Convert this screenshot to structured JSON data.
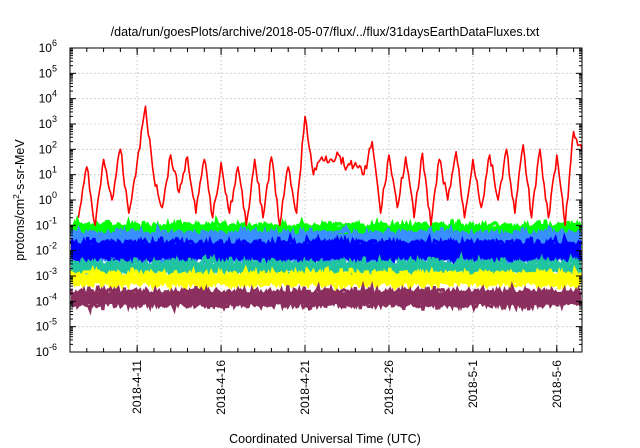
{
  "chart_data": {
    "type": "line",
    "title": "/data/run/goesPlots/archive/2018-05-07/flux/../flux/31daysEarthDataFluxes.txt",
    "xlabel": "Coordinated Universal Time (UTC)",
    "ylabel": "protons/cm2-s-sr-MeV",
    "ylabel_parts": {
      "base": "protons/cm",
      "sup": "2",
      "rest": "-s-sr-MeV"
    },
    "yscale": "log",
    "ylim_exponent": [
      -6,
      6
    ],
    "y_tick_exponents": [
      -6,
      -5,
      -4,
      -3,
      -2,
      -1,
      0,
      1,
      2,
      3,
      4,
      5,
      6
    ],
    "y_tick_base": "10",
    "x_range_days": [
      "2018-04-07",
      "2018-05-07T12:00"
    ],
    "x_ticks": [
      {
        "date": "2018-04-11",
        "label": "2018-4-11"
      },
      {
        "date": "2018-04-16",
        "label": "2018-4-16"
      },
      {
        "date": "2018-04-21",
        "label": "2018-4-21"
      },
      {
        "date": "2018-04-26",
        "label": "2018-4-26"
      },
      {
        "date": "2018-05-01",
        "label": "2018-5-1"
      },
      {
        "date": "2018-05-06",
        "label": "2018-5-6"
      }
    ],
    "grid": true,
    "legend": "none",
    "series": [
      {
        "color": "#ff0000",
        "kind": "line",
        "x": [
          "2018-04-07T12:00",
          "2018-04-08",
          "2018-04-08T12:00",
          "2018-04-09",
          "2018-04-09T12:00",
          "2018-04-10",
          "2018-04-10T12:00",
          "2018-04-11",
          "2018-04-11T12:00",
          "2018-04-12",
          "2018-04-12T12:00",
          "2018-04-13",
          "2018-04-13T12:00",
          "2018-04-14",
          "2018-04-14T12:00",
          "2018-04-15",
          "2018-04-15T12:00",
          "2018-04-16",
          "2018-04-16T12:00",
          "2018-04-17",
          "2018-04-17T12:00",
          "2018-04-18",
          "2018-04-18T12:00",
          "2018-04-19",
          "2018-04-19T12:00",
          "2018-04-20",
          "2018-04-20T12:00",
          "2018-04-21",
          "2018-04-21T12:00",
          "2018-04-22",
          "2018-04-22T12:00",
          "2018-04-23",
          "2018-04-23T12:00",
          "2018-04-24",
          "2018-04-24T12:00",
          "2018-04-25",
          "2018-04-25T12:00",
          "2018-04-26",
          "2018-04-26T12:00",
          "2018-04-27",
          "2018-04-27T12:00",
          "2018-04-28",
          "2018-04-28T12:00",
          "2018-04-29",
          "2018-04-29T12:00",
          "2018-04-30",
          "2018-04-30T12:00",
          "2018-05-01",
          "2018-05-01T12:00",
          "2018-05-02",
          "2018-05-02T12:00",
          "2018-05-03",
          "2018-05-03T12:00",
          "2018-05-04",
          "2018-05-04T12:00",
          "2018-05-05",
          "2018-05-05T12:00",
          "2018-05-06",
          "2018-05-06T12:00",
          "2018-05-07",
          "2018-05-07T12:00"
        ],
        "y": [
          0.2,
          20,
          0.1,
          40,
          1,
          100,
          0.3,
          30,
          5000,
          8,
          0.5,
          60,
          2,
          50,
          0.3,
          40,
          0.2,
          30,
          0.3,
          20,
          0.1,
          40,
          0.2,
          50,
          0.1,
          20,
          0.3,
          2000,
          10,
          50,
          40,
          60,
          20,
          30,
          10,
          200,
          0.3,
          60,
          0.5,
          50,
          0.2,
          70,
          0.1,
          40,
          1,
          80,
          0.2,
          40,
          0.5,
          60,
          1,
          100,
          0.3,
          150,
          0.2,
          100,
          0.2,
          60,
          0.1,
          500,
          100
        ]
      },
      {
        "color": "#00ff00",
        "kind": "band",
        "range": [
          0.01,
          0.12
        ]
      },
      {
        "color": "#3a8fff",
        "kind": "band",
        "range": [
          0.0035,
          0.06
        ]
      },
      {
        "color": "#0000ff",
        "kind": "band",
        "range": [
          0.004,
          0.025
        ]
      },
      {
        "color": "#20c4a0",
        "kind": "band",
        "range": [
          0.0012,
          0.004
        ]
      },
      {
        "color": "#ffff00",
        "kind": "band",
        "range": [
          0.0004,
          0.0015
        ]
      },
      {
        "color": "#8b2f5f",
        "kind": "band",
        "range": [
          6e-05,
          0.0003
        ]
      }
    ]
  }
}
